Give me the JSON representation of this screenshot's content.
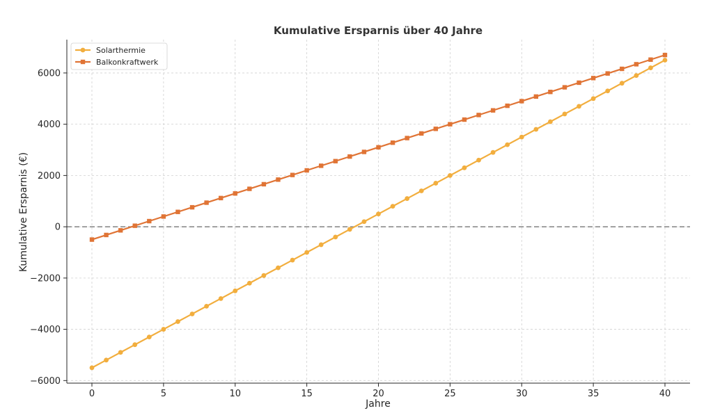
{
  "chart_data": {
    "type": "line",
    "title": "Kumulative Ersparnis über 40 Jahre",
    "xlabel": "Jahre",
    "ylabel": "Kumulative Ersparnis (€)",
    "xlim": [
      -1.75,
      41.75
    ],
    "ylim": [
      -6100,
      7300
    ],
    "xticks": [
      0,
      5,
      10,
      15,
      20,
      25,
      30,
      35,
      40
    ],
    "yticks": [
      -6000,
      -4000,
      -2000,
      0,
      2000,
      4000,
      6000
    ],
    "ytick_labels": [
      "−6000",
      "−4000",
      "−2000",
      "0",
      "2000",
      "4000",
      "6000"
    ],
    "grid": true,
    "legend_position": "top-left",
    "reference_line": {
      "y": 0,
      "style": "dashed",
      "color": "#808080"
    },
    "x": [
      0,
      1,
      2,
      3,
      4,
      5,
      6,
      7,
      8,
      9,
      10,
      11,
      12,
      13,
      14,
      15,
      16,
      17,
      18,
      19,
      20,
      21,
      22,
      23,
      24,
      25,
      26,
      27,
      28,
      29,
      30,
      31,
      32,
      33,
      34,
      35,
      36,
      37,
      38,
      39,
      40
    ],
    "series": [
      {
        "name": "Solarthermie",
        "color": "#f2ae3e",
        "marker": "circle",
        "values": [
          -5500,
          -5200,
          -4900,
          -4600,
          -4300,
          -4000,
          -3700,
          -3400,
          -3100,
          -2800,
          -2500,
          -2200,
          -1900,
          -1600,
          -1300,
          -1000,
          -700,
          -400,
          -100,
          200,
          500,
          800,
          1100,
          1400,
          1700,
          2000,
          2300,
          2600,
          2900,
          3200,
          3500,
          3800,
          4100,
          4400,
          4700,
          5000,
          5300,
          5600,
          5900,
          6200,
          6500
        ]
      },
      {
        "name": "Balkonkraftwerk",
        "color": "#e07435",
        "marker": "square",
        "values": [
          -500,
          -320,
          -140,
          40,
          220,
          400,
          580,
          760,
          940,
          1120,
          1300,
          1480,
          1660,
          1840,
          2020,
          2200,
          2380,
          2560,
          2740,
          2920,
          3100,
          3280,
          3460,
          3640,
          3820,
          4000,
          4180,
          4360,
          4540,
          4720,
          4900,
          5080,
          5260,
          5440,
          5620,
          5800,
          5980,
          6160,
          6340,
          6520,
          6700
        ]
      }
    ]
  }
}
